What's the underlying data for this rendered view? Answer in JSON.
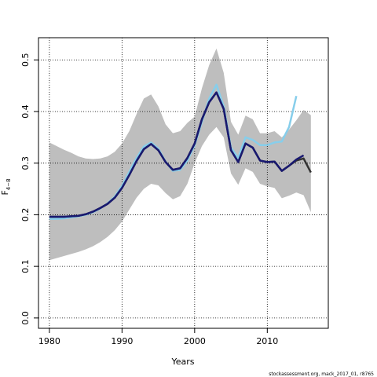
{
  "chart_data": {
    "type": "line",
    "x_label": "Years",
    "y_label": "F",
    "y_label_subscript": "4−8",
    "footnote": "stockassessment.org, mack_2017_01, r8765",
    "x": [
      1980,
      1981,
      1982,
      1983,
      1984,
      1985,
      1986,
      1987,
      1988,
      1989,
      1990,
      1991,
      1992,
      1993,
      1994,
      1995,
      1996,
      1997,
      1998,
      1999,
      2000,
      2001,
      2002,
      2003,
      2004,
      2005,
      2006,
      2007,
      2008,
      2009,
      2010,
      2011,
      2012,
      2013,
      2014,
      2015,
      2016
    ],
    "band": {
      "color": "#bebebe",
      "upper": [
        0.34,
        0.333,
        0.326,
        0.32,
        0.313,
        0.309,
        0.308,
        0.309,
        0.313,
        0.322,
        0.338,
        0.362,
        0.395,
        0.425,
        0.433,
        0.41,
        0.375,
        0.358,
        0.362,
        0.378,
        0.39,
        0.445,
        0.49,
        0.522,
        0.475,
        0.38,
        0.355,
        0.392,
        0.385,
        0.358,
        0.358,
        0.362,
        0.35,
        0.365,
        0.383,
        0.403,
        0.393
      ],
      "lower": [
        0.112,
        0.116,
        0.12,
        0.124,
        0.128,
        0.133,
        0.139,
        0.147,
        0.157,
        0.17,
        0.187,
        0.21,
        0.233,
        0.25,
        0.26,
        0.257,
        0.242,
        0.23,
        0.236,
        0.26,
        0.3,
        0.333,
        0.355,
        0.37,
        0.35,
        0.28,
        0.258,
        0.29,
        0.283,
        0.26,
        0.255,
        0.252,
        0.232,
        0.237,
        0.243,
        0.238,
        0.205
      ]
    },
    "series": [
      {
        "color": "#87ceeb",
        "values": [
          0.192,
          0.192,
          0.193,
          0.195,
          0.197,
          0.2,
          0.205,
          0.212,
          0.222,
          0.235,
          0.256,
          0.283,
          0.31,
          0.332,
          0.34,
          0.328,
          0.303,
          0.285,
          0.287,
          0.305,
          0.335,
          0.38,
          0.425,
          0.452,
          0.41,
          0.33,
          0.31,
          0.35,
          0.345,
          0.335,
          0.335,
          0.34,
          0.342,
          0.37,
          0.43,
          null,
          null
        ]
      },
      {
        "color": "#333333",
        "values": [
          0.196,
          0.196,
          0.196,
          0.197,
          0.198,
          0.201,
          0.206,
          0.213,
          0.221,
          0.233,
          0.252,
          0.277,
          0.304,
          0.327,
          0.337,
          0.325,
          0.302,
          0.287,
          0.29,
          0.31,
          0.338,
          0.385,
          0.418,
          0.437,
          0.405,
          0.325,
          0.302,
          0.338,
          0.33,
          0.305,
          0.302,
          0.303,
          0.285,
          0.295,
          0.305,
          0.309,
          0.282
        ]
      },
      {
        "color": "#191970",
        "values": [
          0.196,
          0.196,
          0.196,
          0.197,
          0.198,
          0.201,
          0.206,
          0.213,
          0.221,
          0.233,
          0.252,
          0.277,
          0.304,
          0.327,
          0.337,
          0.325,
          0.302,
          0.287,
          0.29,
          0.31,
          0.338,
          0.385,
          0.418,
          0.437,
          0.405,
          0.325,
          0.302,
          0.338,
          0.33,
          0.305,
          0.302,
          0.303,
          0.285,
          0.295,
          0.307,
          0.315,
          null
        ]
      }
    ],
    "xlim": [
      1978.5,
      2018.4
    ],
    "ylim": [
      -0.02,
      0.543
    ],
    "xticks": [
      1980,
      1990,
      2000,
      2010
    ],
    "yticks": [
      {
        "value": 0,
        "label": "0.0"
      },
      0.1,
      0.2,
      0.3,
      0.4,
      0.5
    ],
    "grid": true
  }
}
